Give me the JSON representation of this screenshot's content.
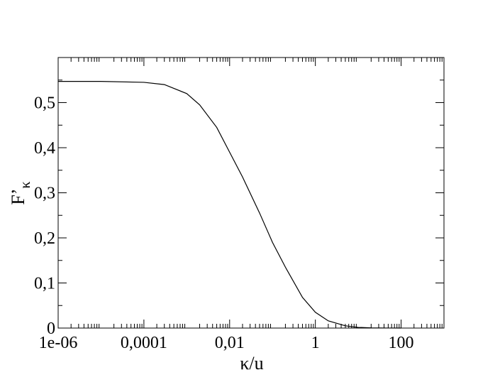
{
  "chart_data": {
    "type": "line",
    "xlabel": "κ/u",
    "ylabel": {
      "main": "F’",
      "sub": "κ"
    },
    "x_scale": "log",
    "xlim": [
      1e-06,
      1000
    ],
    "ylim": [
      0,
      0.6
    ],
    "x_ticks": [
      {
        "value": 1e-06,
        "label": "1e-06"
      },
      {
        "value": 0.0001,
        "label": "0,0001"
      },
      {
        "value": 0.01,
        "label": "0,01"
      },
      {
        "value": 1,
        "label": "1"
      },
      {
        "value": 100,
        "label": "100"
      }
    ],
    "y_ticks": [
      {
        "value": 0,
        "label": "0"
      },
      {
        "value": 0.1,
        "label": "0,1"
      },
      {
        "value": 0.2,
        "label": "0,2"
      },
      {
        "value": 0.3,
        "label": "0,3"
      },
      {
        "value": 0.4,
        "label": "0,4"
      },
      {
        "value": 0.5,
        "label": "0,5"
      }
    ],
    "y_minor_ticks": [
      0.05,
      0.15,
      0.25,
      0.35,
      0.45,
      0.55
    ],
    "grid": false,
    "legend": "none",
    "line_color": "#000000",
    "series": [
      {
        "x": [
          1e-06,
          1e-05,
          0.0001,
          0.0003,
          0.001,
          0.002,
          0.005,
          0.01,
          0.02,
          0.05,
          0.1,
          0.2,
          0.5,
          1,
          2,
          5,
          10,
          20,
          50,
          100
        ],
        "y": [
          0.547,
          0.547,
          0.545,
          0.54,
          0.52,
          0.495,
          0.445,
          0.39,
          0.335,
          0.255,
          0.19,
          0.135,
          0.068,
          0.035,
          0.016,
          0.005,
          0.0015,
          0.0005,
          0.0001,
          0
        ]
      }
    ]
  }
}
